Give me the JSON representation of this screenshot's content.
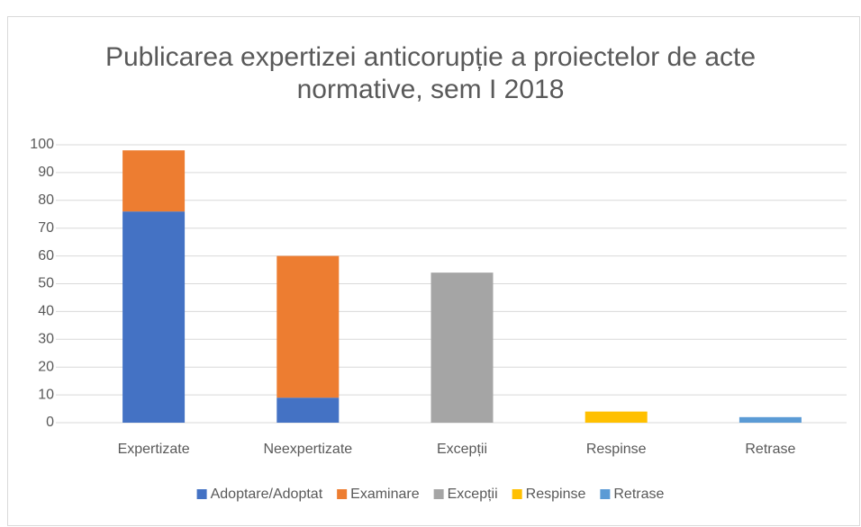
{
  "chart_data": {
    "type": "stacked_bar",
    "title": "Publicarea expertizei anticorupție a proiectelor de acte normative, sem I 2018",
    "categories": [
      "Expertizate",
      "Neexpertizate",
      "Excepții",
      "Respinse",
      "Retrase"
    ],
    "series": [
      {
        "name": "Adoptare/Adoptat",
        "color": "#4472c4",
        "values": [
          76,
          9,
          null,
          null,
          null
        ]
      },
      {
        "name": "Examinare",
        "color": "#ed7d31",
        "values": [
          22,
          51,
          null,
          null,
          null
        ]
      },
      {
        "name": "Excepții",
        "color": "#a5a5a5",
        "values": [
          null,
          null,
          54,
          null,
          null
        ]
      },
      {
        "name": "Respinse",
        "color": "#ffc000",
        "values": [
          null,
          null,
          null,
          4,
          null
        ]
      },
      {
        "name": "Retrase",
        "color": "#5b9bd5",
        "values": [
          null,
          null,
          null,
          null,
          2
        ]
      }
    ],
    "ylim": [
      0,
      100
    ],
    "yticks": [
      0,
      10,
      20,
      30,
      40,
      50,
      60,
      70,
      80,
      90,
      100
    ],
    "grid": true,
    "legend": "bottom"
  }
}
